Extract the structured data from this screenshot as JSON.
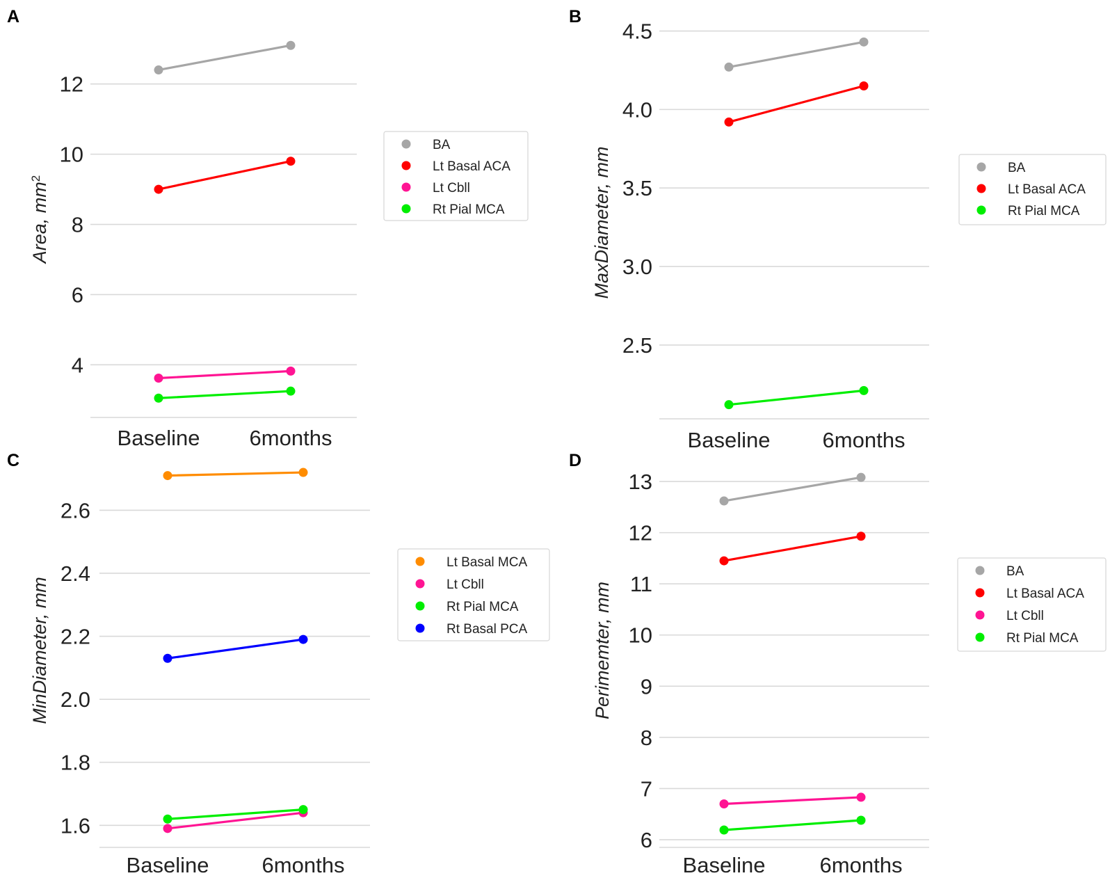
{
  "chart_data": [
    {
      "panel": "A",
      "type": "line",
      "ylabel": "Area, mm",
      "ylabel_sup": "2",
      "categories": [
        "Baseline",
        "6months"
      ],
      "yticks": [
        4,
        6,
        8,
        10,
        12
      ],
      "ylim": [
        2.5,
        13.6
      ],
      "series": [
        {
          "name": "BA",
          "color": "#a6a6a6",
          "values": [
            12.4,
            13.1
          ]
        },
        {
          "name": "Lt Basal ACA",
          "color": "#ff0000",
          "values": [
            9.0,
            9.8
          ]
        },
        {
          "name": "Lt Cbll",
          "color": "#ff1493",
          "values": [
            3.62,
            3.82
          ]
        },
        {
          "name": "Rt Pial MCA",
          "color": "#00ee00",
          "values": [
            3.05,
            3.25
          ]
        }
      ]
    },
    {
      "panel": "B",
      "type": "line",
      "ylabel": "MaxDiameter, mm",
      "categories": [
        "Baseline",
        "6months"
      ],
      "yticks": [
        2.5,
        3.0,
        3.5,
        4.0,
        4.5
      ],
      "ylim": [
        2.03,
        4.52
      ],
      "series": [
        {
          "name": "BA",
          "color": "#a6a6a6",
          "values": [
            4.27,
            4.43
          ]
        },
        {
          "name": "Lt Basal ACA",
          "color": "#ff0000",
          "values": [
            3.92,
            4.15
          ]
        },
        {
          "name": "Rt Pial MCA",
          "color": "#00ee00",
          "values": [
            2.12,
            2.21
          ]
        }
      ]
    },
    {
      "panel": "C",
      "type": "line",
      "ylabel": "MinDiameter, mm",
      "categories": [
        "Baseline",
        "6months"
      ],
      "yticks": [
        1.6,
        1.8,
        2.0,
        2.2,
        2.4,
        2.6
      ],
      "ylim": [
        1.53,
        2.74
      ],
      "series": [
        {
          "name": "Lt Basal MCA",
          "color": "#ff8c00",
          "values": [
            2.71,
            2.72
          ]
        },
        {
          "name": "Lt Cbll",
          "color": "#ff1493",
          "values": [
            1.59,
            1.64
          ]
        },
        {
          "name": "Rt Pial MCA",
          "color": "#00ee00",
          "values": [
            1.62,
            1.65
          ]
        },
        {
          "name": "Rt Basal PCA",
          "color": "#0000ff",
          "values": [
            2.13,
            2.19
          ]
        }
      ]
    },
    {
      "panel": "D",
      "type": "line",
      "ylabel": "Perimemter, mm",
      "categories": [
        "Baseline",
        "6months"
      ],
      "yticks": [
        6,
        7,
        8,
        9,
        10,
        11,
        12,
        13
      ],
      "ylim": [
        5.85,
        13.3
      ],
      "series": [
        {
          "name": "BA",
          "color": "#a6a6a6",
          "values": [
            12.62,
            13.08
          ]
        },
        {
          "name": "Lt Basal ACA",
          "color": "#ff0000",
          "values": [
            11.45,
            11.93
          ]
        },
        {
          "name": "Lt Cbll",
          "color": "#ff1493",
          "values": [
            6.7,
            6.83
          ]
        },
        {
          "name": "Rt Pial MCA",
          "color": "#00ee00",
          "values": [
            6.19,
            6.38
          ]
        }
      ]
    }
  ]
}
